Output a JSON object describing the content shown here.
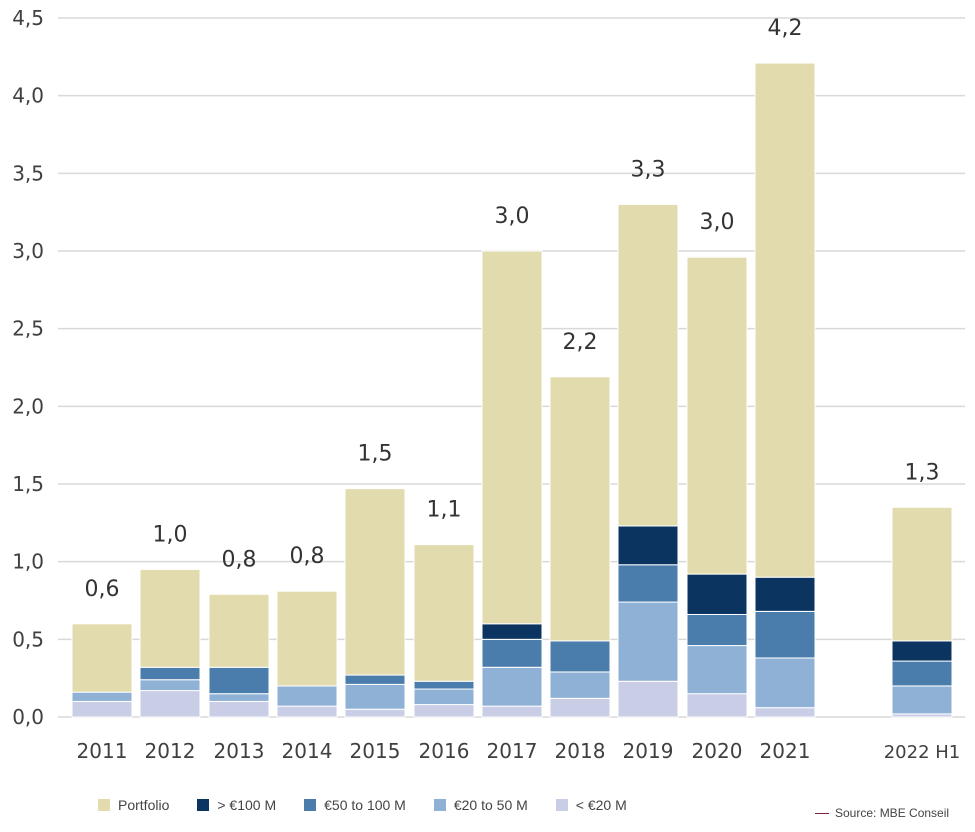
{
  "chart_data": {
    "type": "bar",
    "stacked": true,
    "categories": [
      "2011",
      "2012",
      "2013",
      "2014",
      "2015",
      "2016",
      "2017",
      "2018",
      "2019",
      "2020",
      "2021",
      "2022 H1"
    ],
    "series": [
      {
        "name": "< €20 M",
        "color": "#c9cde6",
        "values": [
          0.1,
          0.17,
          0.1,
          0.07,
          0.05,
          0.08,
          0.07,
          0.12,
          0.23,
          0.15,
          0.06,
          0.02
        ]
      },
      {
        "name": "€20 to 50 M",
        "color": "#8fb1d6",
        "values": [
          0.06,
          0.07,
          0.05,
          0.13,
          0.16,
          0.1,
          0.25,
          0.17,
          0.51,
          0.31,
          0.32,
          0.18
        ]
      },
      {
        "name": "€50 to 100 M",
        "color": "#4a7dab",
        "values": [
          0.0,
          0.08,
          0.17,
          0.0,
          0.06,
          0.05,
          0.18,
          0.2,
          0.24,
          0.2,
          0.3,
          0.16
        ]
      },
      {
        "name": "> €100 M",
        "color": "#0c3461",
        "values": [
          0.0,
          0.0,
          0.0,
          0.0,
          0.0,
          0.0,
          0.1,
          0.0,
          0.25,
          0.26,
          0.22,
          0.13
        ]
      },
      {
        "name": "Portfolio",
        "color": "#e2dbae",
        "values": [
          0.44,
          0.63,
          0.47,
          0.61,
          1.2,
          0.88,
          2.4,
          1.7,
          2.07,
          2.04,
          3.31,
          0.86
        ]
      }
    ],
    "totals": [
      "0,6",
      "1,0",
      "0,8",
      "0,8",
      "1,5",
      "1,1",
      "3,0",
      "2,2",
      "3,3",
      "3,0",
      "4,2",
      "1,3"
    ],
    "ylim": [
      0,
      4.5
    ],
    "yticks": [
      "0,0",
      "0,5",
      "1,0",
      "1,5",
      "2,0",
      "2,5",
      "3,0",
      "3,5",
      "4,0",
      "4,5"
    ],
    "grid": true,
    "legend_position": "bottom"
  },
  "legend": [
    {
      "label": "Portfolio",
      "color": "#e2dbae"
    },
    {
      "label": "> €100 M",
      "color": "#0c3461"
    },
    {
      "label": "€50 to 100 M",
      "color": "#4a7dab"
    },
    {
      "label": "€20 to 50 M",
      "color": "#8fb1d6"
    },
    {
      "label": "< €20 M",
      "color": "#c9cde6"
    }
  ],
  "source": "Source: MBE Conseil"
}
